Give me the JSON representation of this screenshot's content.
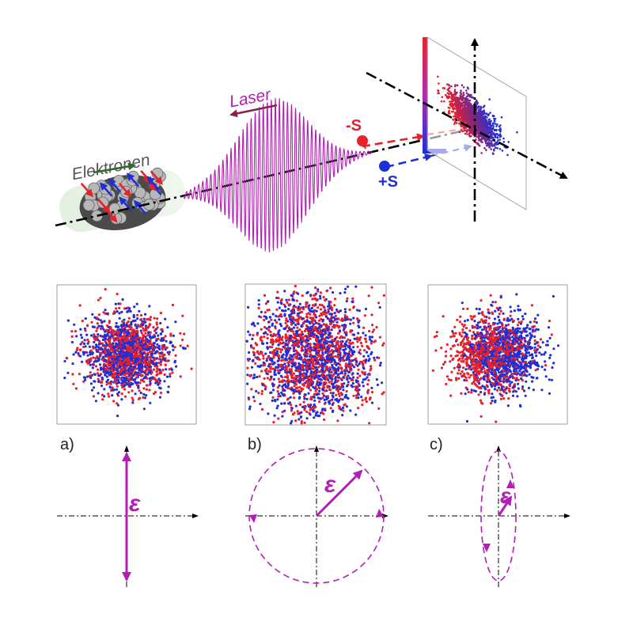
{
  "top": {
    "electrons_label": "Elektronen",
    "laser_label": "Laser",
    "minus_s_label": "-S",
    "plus_s_label": "+S"
  },
  "panels": [
    {
      "label": "a)",
      "polarization": "linear",
      "field_symbol": "ε"
    },
    {
      "label": "b)",
      "polarization": "circular",
      "field_symbol": "ε"
    },
    {
      "label": "c)",
      "polarization": "elliptical",
      "field_symbol": "ε"
    }
  ],
  "colors": {
    "spin_up": "#1f2fd6",
    "spin_down": "#e8202a",
    "laser": "#b31fb3",
    "field": "#b31fb3",
    "electron_arrow": "#2e6b2e",
    "laser_arrow": "#8a1f4a",
    "tube": "#dfeedd"
  }
}
